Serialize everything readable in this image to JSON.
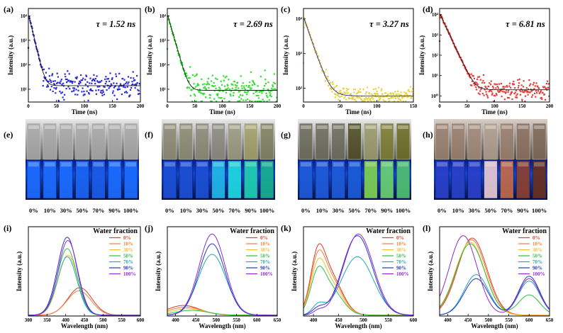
{
  "panel_labels": [
    "(a)",
    "(b)",
    "(c)",
    "(d)",
    "(e)",
    "(f)",
    "(g)",
    "(h)",
    "(i)",
    "(j)",
    "(k)",
    "(l)"
  ],
  "photo_labels": [
    "0%",
    "10%",
    "30%",
    "50%",
    "70%",
    "90%",
    "100%"
  ],
  "colors": {
    "series": [
      "#e03b2e",
      "#e8823a",
      "#f0c02a",
      "#2fbd48",
      "#20a9b8",
      "#2a34c8",
      "#8a2bd0"
    ],
    "decay": [
      "#2a2ad8",
      "#2fe02f",
      "#e8d14a",
      "#e83a3a"
    ]
  },
  "chart_data": [
    {
      "type": "scatter",
      "panel": "(a)",
      "annotation": "τ = 1.52 ns",
      "xlabel": "Time (ns)",
      "ylabel": "Intensity (a.u.)",
      "xlim": [
        0,
        200
      ],
      "xticks": [
        0,
        50,
        100,
        150,
        200
      ],
      "yscale": "log",
      "ylim": [
        3,
        20000
      ],
      "yticks": [
        {
          "v": 10,
          "label": "10¹"
        },
        {
          "v": 100,
          "label": "10²"
        },
        {
          "v": 1000,
          "label": "10³"
        },
        {
          "v": 10000,
          "label": "10⁴"
        }
      ],
      "decay": {
        "peak_t": 1,
        "peak": 10000,
        "tau": 4.5,
        "baseline": 14,
        "noise": 0.35
      }
    },
    {
      "type": "scatter",
      "panel": "(b)",
      "annotation": "τ = 2.69 ns",
      "xlabel": "Time (ns)",
      "ylabel": "Intensity (a.u.)",
      "xlim": [
        0,
        200
      ],
      "xticks": [
        0,
        50,
        100,
        150,
        200
      ],
      "yscale": "log",
      "ylim": [
        3,
        20000
      ],
      "yticks": [
        {
          "v": 10,
          "label": "10¹"
        },
        {
          "v": 100,
          "label": "10²"
        },
        {
          "v": 1000,
          "label": "10³"
        },
        {
          "v": 10000,
          "label": "10⁴"
        }
      ],
      "decay": {
        "peak_t": 1,
        "peak": 10000,
        "tau": 5.5,
        "baseline": 9,
        "noise": 0.45
      }
    },
    {
      "type": "scatter",
      "panel": "(c)",
      "annotation": "τ = 3.27 ns",
      "xlabel": "Time (ns)",
      "ylabel": "Intensity (a.u.)",
      "xlim": [
        0,
        150
      ],
      "xticks": [
        0,
        50,
        100,
        150
      ],
      "yscale": "log",
      "ylim": [
        40,
        20000
      ],
      "yticks": [
        {
          "v": 100,
          "label": "10²"
        },
        {
          "v": 1000,
          "label": "10³"
        },
        {
          "v": 10000,
          "label": "10⁴"
        }
      ],
      "decay": {
        "peak_t": 1,
        "peak": 10000,
        "tau": 7,
        "baseline": 60,
        "noise": 0.15
      }
    },
    {
      "type": "scatter",
      "panel": "(d)",
      "annotation": "τ = 6.81 ns",
      "xlabel": "Time (ns)",
      "ylabel": "Intensity (a.u.)",
      "xlim": [
        0,
        200
      ],
      "xticks": [
        0,
        50,
        100,
        150,
        200
      ],
      "yscale": "log",
      "ylim": [
        0.5,
        20000
      ],
      "yticks": [
        {
          "v": 1,
          "label": "10⁰"
        },
        {
          "v": 10,
          "label": "10¹"
        },
        {
          "v": 100,
          "label": "10²"
        },
        {
          "v": 1000,
          "label": "10³"
        },
        {
          "v": 10000,
          "label": "10⁴"
        }
      ],
      "decay": {
        "peak_t": 1,
        "peak": 10000,
        "tau": 7.5,
        "baseline": 2,
        "noise": 0.35
      }
    },
    {
      "type": "line",
      "panel": "(i)",
      "legend_title": "Water fraction",
      "legend_position": "top-right",
      "xlabel": "Wavelength (nm)",
      "ylabel": "Intensity (a.u.)",
      "xlim": [
        300,
        600
      ],
      "xticks": [
        300,
        350,
        400,
        450,
        500,
        550,
        600
      ],
      "ymax": 1.1,
      "series": [
        {
          "name": "0%",
          "peaks": [
            [
              438,
              0.34,
              32
            ]
          ]
        },
        {
          "name": "10%",
          "peaks": [
            [
              436,
              0.3,
              32
            ]
          ]
        },
        {
          "name": "30%",
          "peaks": [
            [
              406,
              0.74,
              26
            ]
          ]
        },
        {
          "name": "50%",
          "peaks": [
            [
              404,
              0.82,
              26
            ]
          ]
        },
        {
          "name": "70%",
          "peaks": [
            [
              404,
              0.72,
              26
            ]
          ]
        },
        {
          "name": "90%",
          "peaks": [
            [
              404,
              0.96,
              26
            ]
          ]
        },
        {
          "name": "100%",
          "peaks": [
            [
              406,
              0.92,
              26
            ]
          ]
        }
      ]
    },
    {
      "type": "line",
      "panel": "(j)",
      "legend_title": "Water fraction",
      "legend_position": "top-right",
      "xlabel": "Wavelength (nm)",
      "ylabel": "Intensity (a.u.)",
      "xlim": [
        380,
        650
      ],
      "xticks": [
        400,
        450,
        500,
        550,
        600,
        650
      ],
      "ymax": 1.1,
      "series": [
        {
          "name": "0%",
          "peaks": [
            [
              420,
              0.12,
              40
            ]
          ]
        },
        {
          "name": "10%",
          "peaks": [
            [
              425,
              0.1,
              40
            ]
          ]
        },
        {
          "name": "30%",
          "peaks": [
            [
              430,
              0.08,
              40
            ]
          ]
        },
        {
          "name": "50%",
          "peaks": [
            [
              440,
              0.06,
              40
            ]
          ]
        },
        {
          "name": "70%",
          "peaks": [
            [
              490,
              0.75,
              34
            ]
          ]
        },
        {
          "name": "90%",
          "peaks": [
            [
              490,
              0.88,
              32
            ]
          ]
        },
        {
          "name": "100%",
          "peaks": [
            [
              490,
              1.0,
              32
            ]
          ]
        }
      ]
    },
    {
      "type": "line",
      "panel": "(k)",
      "legend_title": "Water fraction",
      "legend_position": "top-right",
      "xlabel": "Wavelength (nm)",
      "ylabel": "Intensity (a.u.)",
      "xlim": [
        380,
        600
      ],
      "xticks": [
        400,
        450,
        500,
        550,
        600
      ],
      "ymax": 1.1,
      "series": [
        {
          "name": "0%",
          "peaks": [
            [
              408,
              0.55,
              14
            ],
            [
              432,
              0.5,
              24
            ]
          ]
        },
        {
          "name": "10%",
          "peaks": [
            [
              408,
              0.5,
              14
            ],
            [
              432,
              0.46,
              24
            ]
          ]
        },
        {
          "name": "30%",
          "peaks": [
            [
              408,
              0.44,
              14
            ],
            [
              432,
              0.4,
              24
            ]
          ]
        },
        {
          "name": "50%",
          "peaks": [
            [
              408,
              0.38,
              14
            ],
            [
              432,
              0.34,
              24
            ]
          ]
        },
        {
          "name": "70%",
          "peaks": [
            [
              410,
              0.12,
              12
            ],
            [
              488,
              0.72,
              32
            ]
          ]
        },
        {
          "name": "90%",
          "peaks": [
            [
              410,
              0.08,
              12
            ],
            [
              488,
              0.98,
              30
            ]
          ]
        },
        {
          "name": "100%",
          "peaks": [
            [
              410,
              0.05,
              10
            ],
            [
              490,
              1.0,
              30
            ]
          ]
        }
      ]
    },
    {
      "type": "line",
      "panel": "(l)",
      "legend_title": "Water fraction",
      "legend_position": "top-right",
      "xlabel": "Wavelength (nm)",
      "ylabel": "Intensity (a.u.)",
      "xlim": [
        380,
        650
      ],
      "xticks": [
        400,
        450,
        500,
        550,
        600,
        650
      ],
      "ymax": 1.1,
      "series": [
        {
          "name": "0%",
          "peaks": [
            [
              460,
              0.95,
              36
            ]
          ]
        },
        {
          "name": "10%",
          "peaks": [
            [
              458,
              0.93,
              36
            ]
          ]
        },
        {
          "name": "30%",
          "peaks": [
            [
              455,
              0.9,
              36
            ]
          ]
        },
        {
          "name": "50%",
          "peaks": [
            [
              455,
              0.88,
              36
            ],
            [
              600,
              0.25,
              26
            ]
          ]
        },
        {
          "name": "70%",
          "peaks": [
            [
              470,
              0.5,
              30
            ],
            [
              600,
              0.42,
              26
            ]
          ]
        },
        {
          "name": "90%",
          "peaks": [
            [
              470,
              0.45,
              30
            ],
            [
              600,
              0.48,
              26
            ]
          ]
        },
        {
          "name": "100%",
          "peaks": [
            [
              438,
              0.98,
              34
            ],
            [
              600,
              0.45,
              26
            ]
          ]
        }
      ]
    }
  ]
}
